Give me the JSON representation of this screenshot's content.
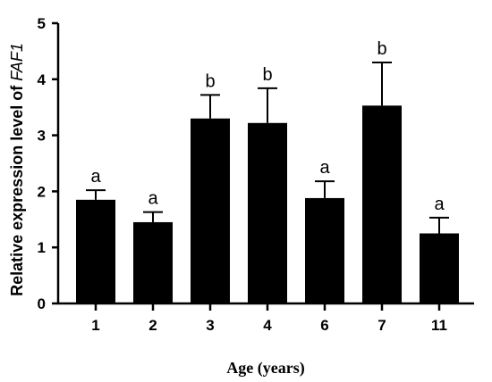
{
  "chart_data": {
    "type": "bar",
    "categories": [
      "1",
      "2",
      "3",
      "4",
      "6",
      "7",
      "11"
    ],
    "values": [
      1.85,
      1.45,
      3.3,
      3.22,
      1.88,
      3.53,
      1.25
    ],
    "errors": [
      0.17,
      0.18,
      0.42,
      0.62,
      0.3,
      0.77,
      0.28
    ],
    "significance": [
      "a",
      "a",
      "b",
      "b",
      "a",
      "b",
      "a"
    ],
    "xlabel": "Age (years)",
    "ylabel_prefix": "Relative expression level of ",
    "ylabel_gene": "FAF1",
    "ylim": [
      0,
      5
    ],
    "yticks": [
      "0",
      "1",
      "2",
      "3",
      "4",
      "5"
    ],
    "bar_color": "#000000",
    "grid": false,
    "legend": "none"
  }
}
